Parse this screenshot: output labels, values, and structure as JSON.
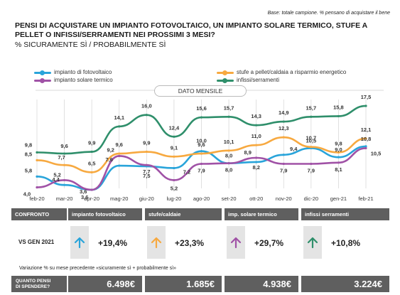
{
  "base_note": "Base: totale campione. % pensano di acquistare il bene",
  "title": "PENSI DI ACQUISTARE UN IMPIANTO FOTOVOLTAICO, UN IMPIANTO SOLARE TERMICO,  STUFE A PELLET O INFISSI/SERRAMENTI NEI PROSSIMI 3 MESI?",
  "subtitle": "% SICURAMENTE SÌ / PROBABILMENTE SÌ",
  "badge": "DATO MENSILE",
  "colors": {
    "fotovoltaico": "#29a4da",
    "stufe": "#f7a940",
    "solare": "#a052a6",
    "infissi": "#2f8f6b",
    "header": "#5f5f5f",
    "grid": "#d9d9d9"
  },
  "chart_data": {
    "type": "line",
    "categories": [
      "feb-20",
      "mar-20",
      "apr-20",
      "mag-20",
      "giu-20",
      "lug-20",
      "ago-20",
      "set-20",
      "ott-20",
      "nov-20",
      "dic-20",
      "gen-21",
      "feb-21"
    ],
    "series": [
      {
        "key": "fotovoltaico",
        "name": "impianto di fotovoltaico",
        "values": [
          5.8,
          4.4,
          3.6,
          7.6,
          7.5,
          7.2,
          10.0,
          8.0,
          8.2,
          9.4,
          10.5,
          9.0,
          10.8
        ],
        "labels": [
          "5,8",
          "4,4",
          "3,6",
          "7,6",
          "7,5",
          "7,2",
          "10,0",
          "8,0",
          "8,2",
          "9,4",
          "10,5",
          "9,0",
          "10,8"
        ]
      },
      {
        "key": "stufe",
        "name": "stufe a pellet/caldaia a risparmio energetico",
        "values": [
          8.5,
          7.7,
          6.5,
          9.6,
          9.9,
          9.1,
          9.6,
          10.1,
          11.0,
          12.3,
          10.7,
          9.8,
          12.1
        ],
        "labels": [
          "8,5",
          "7,7",
          "6,5",
          "9,6",
          "9,9",
          "9,1",
          "9,6",
          "10,1",
          "11,0",
          "12,3",
          "10,7",
          "9,8",
          "12,1"
        ]
      },
      {
        "key": "solare",
        "name": "impianto solare termico",
        "values": [
          4.0,
          5.2,
          3.6,
          9.2,
          7.7,
          5.2,
          7.9,
          8.0,
          8.9,
          7.9,
          7.9,
          8.1,
          10.5
        ],
        "labels": [
          "4,0",
          "5,2",
          "3,6",
          "9,2",
          "7,7",
          "5,2",
          "7,9",
          "8,0",
          "8,9",
          "7,9",
          "7,9",
          "8,1",
          "10,5"
        ]
      },
      {
        "key": "infissi",
        "name": "infissi/serramenti",
        "values": [
          9.8,
          9.6,
          9.9,
          14.1,
          16.0,
          12.4,
          15.6,
          15.7,
          14.3,
          14.9,
          15.7,
          15.8,
          17.5
        ],
        "labels": [
          "9,8",
          "9,6",
          "9,9",
          "14,1",
          "16,0",
          "12,4",
          "15,6",
          "15,7",
          "14,3",
          "14,9",
          "15,7",
          "15,8",
          "17,5"
        ]
      }
    ]
  },
  "confronto": {
    "header_label": "CONFRONTO",
    "row_label": "VS GEN 2021",
    "items": [
      {
        "key": "fotovoltaico",
        "label": "impianto fotovoltaico",
        "value": "+19,4%"
      },
      {
        "key": "stufe",
        "label": "stufe/caldaie",
        "value": "+23,3%"
      },
      {
        "key": "solare",
        "label": "imp. solare termico",
        "value": "+29,7%"
      },
      {
        "key": "infissi",
        "label": "infissi serramenti",
        "value": "+10,8%"
      }
    ]
  },
  "note": "Variazione % su mese precedente «sicuramente sì + probabilmente sì»",
  "spesa": {
    "label_line1": "QUANTO PENSI",
    "label_line2": "DI SPENDERE?",
    "amounts": [
      "6.498€",
      "1.685€",
      "4.938€",
      "3.224€"
    ]
  }
}
